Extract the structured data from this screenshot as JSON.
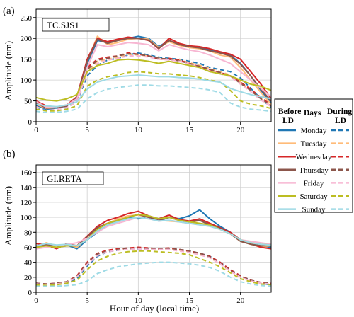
{
  "shared": {
    "xlabel": "Hour of day (local time)",
    "ylabel": "Amplitude (nm)",
    "xlim": [
      0,
      23
    ],
    "xticks": [
      0,
      5,
      10,
      15,
      20
    ],
    "legend": {
      "header_left": "Before LD",
      "header_mid": "Days",
      "header_right": "During LD",
      "placement": "right",
      "entries": [
        {
          "day": "Monday",
          "color": "#1f77b4"
        },
        {
          "day": "Tuesday",
          "color": "#ffbb78"
        },
        {
          "day": "Wednesday",
          "color": "#d62728"
        },
        {
          "day": "Thursday",
          "color": "#8c564b"
        },
        {
          "day": "Friday",
          "color": "#f7b6d2"
        },
        {
          "day": "Saturday",
          "color": "#bcbd22"
        },
        {
          "day": "Sunday",
          "color": "#9edae5"
        }
      ]
    }
  },
  "chart_data": [
    {
      "type": "line",
      "panel": "(a)",
      "station": "TC.SJS1",
      "ylim": [
        0,
        270
      ],
      "yticks": [
        0,
        50,
        100,
        150,
        200,
        250
      ],
      "grid": true,
      "x": [
        0,
        1,
        2,
        3,
        4,
        5,
        6,
        7,
        8,
        9,
        10,
        11,
        12,
        13,
        14,
        15,
        16,
        17,
        18,
        19,
        20,
        21,
        22,
        23
      ],
      "series": [
        {
          "day": "Monday",
          "period": "before",
          "values": [
            40,
            30,
            33,
            38,
            55,
            140,
            195,
            190,
            195,
            200,
            205,
            200,
            180,
            195,
            185,
            180,
            178,
            172,
            165,
            160,
            140,
            110,
            75,
            45
          ]
        },
        {
          "day": "Tuesday",
          "period": "before",
          "values": [
            42,
            32,
            34,
            40,
            60,
            145,
            205,
            185,
            190,
            198,
            200,
            198,
            178,
            192,
            183,
            178,
            175,
            170,
            160,
            155,
            130,
            100,
            70,
            42
          ]
        },
        {
          "day": "Wednesday",
          "period": "before",
          "values": [
            50,
            38,
            35,
            40,
            60,
            150,
            200,
            192,
            198,
            203,
            200,
            195,
            175,
            200,
            188,
            182,
            180,
            175,
            168,
            162,
            150,
            120,
            90,
            55
          ]
        },
        {
          "day": "Thursday",
          "period": "before",
          "values": [
            45,
            33,
            34,
            38,
            58,
            145,
            198,
            188,
            195,
            200,
            200,
            196,
            176,
            195,
            185,
            180,
            177,
            170,
            165,
            158,
            138,
            110,
            78,
            50
          ]
        },
        {
          "day": "Friday",
          "period": "before",
          "values": [
            48,
            35,
            36,
            40,
            55,
            130,
            185,
            180,
            185,
            190,
            188,
            185,
            170,
            185,
            178,
            172,
            168,
            160,
            150,
            140,
            120,
            100,
            80,
            60
          ]
        },
        {
          "day": "Saturday",
          "period": "before",
          "values": [
            58,
            52,
            50,
            55,
            65,
            120,
            135,
            140,
            148,
            150,
            148,
            145,
            140,
            145,
            140,
            135,
            130,
            120,
            115,
            110,
            100,
            90,
            85,
            75
          ]
        },
        {
          "day": "Sunday",
          "period": "before",
          "values": [
            42,
            38,
            36,
            40,
            48,
            78,
            95,
            102,
            108,
            110,
            112,
            110,
            108,
            108,
            106,
            105,
            102,
            98,
            95,
            80,
            72,
            65,
            60,
            55
          ]
        },
        {
          "day": "Monday",
          "period": "during",
          "values": [
            35,
            28,
            30,
            34,
            48,
            110,
            135,
            148,
            152,
            160,
            165,
            160,
            155,
            152,
            150,
            145,
            140,
            130,
            125,
            120,
            105,
            80,
            55,
            35
          ]
        },
        {
          "day": "Tuesday",
          "period": "during",
          "values": [
            38,
            30,
            30,
            35,
            50,
            120,
            145,
            150,
            155,
            162,
            160,
            158,
            152,
            150,
            148,
            142,
            135,
            128,
            120,
            112,
            95,
            75,
            55,
            38
          ]
        },
        {
          "day": "Wednesday",
          "period": "during",
          "values": [
            40,
            32,
            32,
            36,
            52,
            130,
            150,
            155,
            158,
            165,
            162,
            158,
            150,
            152,
            148,
            140,
            132,
            125,
            118,
            110,
            95,
            78,
            58,
            40
          ]
        },
        {
          "day": "Thursday",
          "period": "during",
          "values": [
            38,
            30,
            30,
            35,
            50,
            125,
            148,
            152,
            158,
            163,
            162,
            158,
            152,
            150,
            146,
            140,
            133,
            126,
            118,
            110,
            92,
            75,
            55,
            38
          ]
        },
        {
          "day": "Friday",
          "period": "during",
          "values": [
            36,
            30,
            30,
            34,
            48,
            118,
            140,
            148,
            152,
            158,
            158,
            155,
            150,
            148,
            145,
            138,
            130,
            122,
            115,
            108,
            90,
            72,
            52,
            36
          ]
        },
        {
          "day": "Saturday",
          "period": "during",
          "values": [
            30,
            26,
            26,
            30,
            38,
            85,
            100,
            108,
            112,
            118,
            120,
            118,
            115,
            115,
            112,
            110,
            106,
            100,
            95,
            75,
            50,
            42,
            38,
            32
          ]
        },
        {
          "day": "Sunday",
          "period": "during",
          "values": [
            25,
            22,
            22,
            25,
            30,
            55,
            70,
            78,
            82,
            85,
            88,
            88,
            86,
            86,
            84,
            82,
            80,
            76,
            70,
            45,
            35,
            30,
            28,
            25
          ]
        }
      ]
    },
    {
      "type": "line",
      "panel": "(b)",
      "station": "GI.RETA",
      "ylim": [
        0,
        170
      ],
      "yticks": [
        0,
        20,
        40,
        60,
        80,
        100,
        120,
        140,
        160
      ],
      "grid": true,
      "x": [
        0,
        1,
        2,
        3,
        4,
        5,
        6,
        7,
        8,
        9,
        10,
        11,
        12,
        13,
        14,
        15,
        16,
        17,
        18,
        19,
        20,
        21,
        22,
        23
      ],
      "series": [
        {
          "day": "Monday",
          "period": "before",
          "values": [
            62,
            65,
            60,
            63,
            58,
            70,
            80,
            90,
            95,
            100,
            98,
            102,
            95,
            100,
            98,
            102,
            110,
            98,
            88,
            80,
            70,
            65,
            62,
            60
          ]
        },
        {
          "day": "Tuesday",
          "period": "before",
          "values": [
            60,
            66,
            62,
            64,
            60,
            72,
            85,
            92,
            98,
            102,
            103,
            100,
            96,
            95,
            94,
            92,
            96,
            90,
            85,
            78,
            68,
            64,
            60,
            62
          ]
        },
        {
          "day": "Wednesday",
          "period": "before",
          "values": [
            65,
            63,
            58,
            65,
            62,
            75,
            88,
            96,
            100,
            105,
            108,
            102,
            98,
            103,
            97,
            95,
            98,
            92,
            86,
            80,
            70,
            65,
            60,
            58
          ]
        },
        {
          "day": "Thursday",
          "period": "before",
          "values": [
            62,
            64,
            60,
            62,
            62,
            74,
            86,
            92,
            96,
            100,
            104,
            100,
            96,
            100,
            96,
            94,
            96,
            90,
            85,
            78,
            68,
            64,
            62,
            62
          ]
        },
        {
          "day": "Friday",
          "period": "before",
          "values": [
            58,
            60,
            62,
            64,
            66,
            72,
            80,
            88,
            92,
            96,
            100,
            98,
            95,
            96,
            94,
            92,
            90,
            88,
            84,
            78,
            70,
            68,
            66,
            64
          ]
        },
        {
          "day": "Saturday",
          "period": "before",
          "values": [
            60,
            62,
            60,
            62,
            62,
            70,
            84,
            92,
            96,
            100,
            104,
            102,
            98,
            100,
            96,
            94,
            92,
            90,
            84,
            78,
            70,
            66,
            64,
            63
          ]
        },
        {
          "day": "Sunday",
          "period": "before",
          "values": [
            62,
            65,
            63,
            64,
            62,
            70,
            82,
            90,
            94,
            98,
            100,
            98,
            95,
            96,
            94,
            92,
            90,
            88,
            84,
            78,
            70,
            66,
            64,
            63
          ]
        },
        {
          "day": "Monday",
          "period": "during",
          "values": [
            10,
            10,
            11,
            12,
            18,
            35,
            48,
            54,
            56,
            58,
            58,
            58,
            57,
            58,
            57,
            55,
            52,
            48,
            40,
            30,
            22,
            16,
            12,
            10
          ]
        },
        {
          "day": "Tuesday",
          "period": "during",
          "values": [
            11,
            10,
            11,
            13,
            20,
            38,
            50,
            55,
            57,
            58,
            59,
            58,
            58,
            58,
            56,
            54,
            50,
            46,
            38,
            28,
            20,
            15,
            12,
            11
          ]
        },
        {
          "day": "Wednesday",
          "period": "during",
          "values": [
            12,
            11,
            12,
            14,
            22,
            40,
            52,
            56,
            58,
            59,
            60,
            59,
            58,
            59,
            57,
            55,
            52,
            48,
            40,
            30,
            22,
            16,
            13,
            12
          ]
        },
        {
          "day": "Thursday",
          "period": "during",
          "values": [
            12,
            11,
            12,
            14,
            21,
            39,
            51,
            55,
            57,
            58,
            59,
            58,
            58,
            58,
            57,
            55,
            52,
            47,
            39,
            29,
            21,
            16,
            13,
            12
          ]
        },
        {
          "day": "Friday",
          "period": "during",
          "values": [
            11,
            10,
            11,
            13,
            20,
            37,
            49,
            54,
            56,
            57,
            58,
            57,
            57,
            57,
            55,
            53,
            50,
            46,
            38,
            28,
            20,
            15,
            12,
            11
          ]
        },
        {
          "day": "Saturday",
          "period": "during",
          "values": [
            10,
            9,
            10,
            12,
            16,
            30,
            42,
            48,
            52,
            54,
            55,
            55,
            54,
            53,
            52,
            50,
            45,
            40,
            34,
            26,
            18,
            14,
            11,
            10
          ]
        },
        {
          "day": "Sunday",
          "period": "during",
          "values": [
            8,
            8,
            8,
            9,
            10,
            15,
            25,
            30,
            34,
            36,
            38,
            39,
            40,
            40,
            39,
            38,
            36,
            33,
            28,
            20,
            14,
            11,
            9,
            8
          ]
        }
      ]
    }
  ]
}
